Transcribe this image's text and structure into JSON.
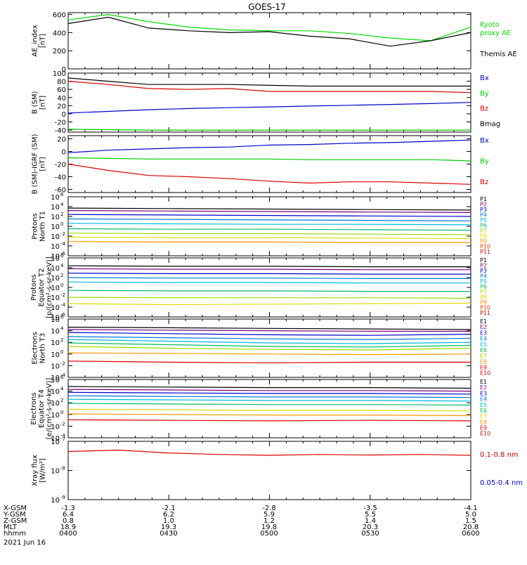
{
  "title": "GOES-17",
  "date_label": "2021 Jun 16",
  "footer": {
    "row_labels": [
      "X-GSM",
      "Y-GSM",
      "Z-GSM",
      "MLT",
      "hhmm"
    ],
    "columns": [
      {
        "values": [
          "-1.3",
          "6.4",
          "0.8",
          "18.9",
          "0400"
        ]
      },
      {
        "values": [
          "-2.1",
          "6.2",
          "1.0",
          "19.3",
          "0430"
        ]
      },
      {
        "values": [
          "-2.8",
          "5.9",
          "1.2",
          "19.8",
          "0500"
        ]
      },
      {
        "values": [
          "-3.5",
          "5.5",
          "1.4",
          "20.3",
          "0530"
        ]
      },
      {
        "values": [
          "-4.1",
          "5.0",
          "1.5",
          "20.8",
          "0600"
        ]
      }
    ]
  },
  "chart_data": [
    {
      "type": "line",
      "ylabel": [
        "AE_index",
        "[nT]"
      ],
      "scale": "linear",
      "ylim": [
        0,
        620
      ],
      "yticks": [
        0,
        200,
        400,
        600
      ],
      "ytick_labels": [
        "0",
        "200",
        "400",
        "600"
      ],
      "x_hours": [
        4.0,
        4.2,
        4.4,
        4.6,
        4.8,
        5.0,
        5.2,
        5.4,
        5.6,
        5.8,
        6.0
      ],
      "series": [
        {
          "name": "Kyoto",
          "name2": "proxy AE",
          "color": "#00dd00",
          "values": [
            540,
            600,
            520,
            460,
            430,
            420,
            420,
            390,
            340,
            310,
            460
          ]
        },
        {
          "name": "Themis AE",
          "color": "#000000",
          "values": [
            500,
            570,
            450,
            420,
            400,
            410,
            360,
            330,
            250,
            310,
            400
          ]
        }
      ]
    },
    {
      "type": "line",
      "ylabel": [
        "B (SM)",
        "[nT]"
      ],
      "scale": "linear",
      "ylim": [
        -45,
        100
      ],
      "yticks": [
        -40,
        -20,
        0,
        20,
        40,
        60,
        80,
        100
      ],
      "ytick_labels": [
        "-40",
        "-20",
        "0",
        "20",
        "40",
        "60",
        "80",
        "100"
      ],
      "x_hours": [
        4.0,
        4.2,
        4.4,
        4.6,
        4.8,
        5.0,
        5.2,
        5.4,
        5.6,
        5.8,
        6.0
      ],
      "series": [
        {
          "name": "Bx",
          "color": "#0000cc",
          "values": [
            2,
            6,
            10,
            13,
            15,
            17,
            19,
            21,
            23,
            25,
            28
          ]
        },
        {
          "name": "By",
          "color": "#00cc00",
          "values": [
            -38,
            -39,
            -40,
            -40,
            -40,
            -40,
            -40,
            -40,
            -40,
            -40,
            -40
          ]
        },
        {
          "name": "Bz",
          "color": "#dd0000",
          "values": [
            80,
            72,
            62,
            60,
            62,
            55,
            55,
            55,
            55,
            55,
            52
          ]
        },
        {
          "name": "Bmag",
          "color": "#000000",
          "values": [
            88,
            80,
            72,
            72,
            72,
            70,
            68,
            68,
            68,
            68,
            68
          ]
        }
      ]
    },
    {
      "type": "line",
      "ylabel": [
        "B (SM)-IGRF (SM)",
        "[nT]"
      ],
      "scale": "linear",
      "ylim": [
        -65,
        25
      ],
      "yticks": [
        -60,
        -40,
        -20,
        0,
        20
      ],
      "ytick_labels": [
        "-60",
        "-40",
        "-20",
        "0",
        "20"
      ],
      "x_hours": [
        4.0,
        4.2,
        4.4,
        4.6,
        4.8,
        5.0,
        5.2,
        5.4,
        5.6,
        5.8,
        6.0
      ],
      "series": [
        {
          "name": "Bx",
          "color": "#0000cc",
          "values": [
            -2,
            2,
            4,
            6,
            7,
            10,
            11,
            13,
            14,
            16,
            18
          ]
        },
        {
          "name": "By",
          "color": "#00cc00",
          "values": [
            -10,
            -11,
            -12,
            -12,
            -12,
            -12,
            -13,
            -13,
            -13,
            -13,
            -15
          ]
        },
        {
          "name": "Bz",
          "color": "#dd0000",
          "values": [
            -20,
            -30,
            -38,
            -40,
            -43,
            -47,
            -50,
            -48,
            -48,
            -50,
            -52
          ]
        }
      ]
    },
    {
      "type": "line",
      "ylabel": [
        "Protons",
        "North T1"
      ],
      "scale": "log",
      "ylim_exp": [
        -6,
        6
      ],
      "ytick_exps": [
        -6,
        -4,
        -2,
        0,
        2,
        4,
        6
      ],
      "ytick_base": "10",
      "ytick_exponents": [
        "-6",
        "-4",
        "-2",
        "0",
        "2",
        "4",
        "6"
      ],
      "x_hours": [
        4.0,
        4.5,
        5.0,
        5.5,
        6.0
      ],
      "series": [
        {
          "name": "P1",
          "color": "#000000",
          "log_values": [
            3.7,
            3.6,
            3.5,
            3.4,
            3.3
          ]
        },
        {
          "name": "P2",
          "color": "#7a007a",
          "log_values": [
            3.2,
            3.1,
            3.0,
            2.9,
            2.8
          ]
        },
        {
          "name": "P3",
          "color": "#0000cc",
          "log_values": [
            2.4,
            2.3,
            2.2,
            2.1,
            2.0
          ]
        },
        {
          "name": "P4",
          "color": "#0077dd",
          "log_values": [
            1.5,
            1.4,
            1.3,
            1.2,
            1.1
          ]
        },
        {
          "name": "P5",
          "color": "#00bbdd",
          "log_values": [
            0.6,
            0.5,
            0.4,
            0.4,
            0.3
          ]
        },
        {
          "name": "P6",
          "color": "#00bb66",
          "log_values": [
            -0.5,
            -0.6,
            -0.6,
            -0.7,
            -0.8
          ]
        },
        {
          "name": "P7",
          "color": "#99dd00",
          "log_values": [
            -1.4,
            -1.5,
            -1.5,
            -1.6,
            -1.7
          ]
        },
        {
          "name": "P8",
          "color": "#dddd00",
          "log_values": [
            -2.2,
            -2.3,
            -2.3,
            -2.4,
            -2.5
          ]
        },
        {
          "name": "P9",
          "color": "#ff9900",
          "log_values": [
            -3.1,
            -3.2,
            -3.2,
            -3.3,
            -3.3
          ]
        },
        {
          "name": "P10",
          "color": "#ff3300",
          "log_values": []
        },
        {
          "name": "P11",
          "color": "#cc0000",
          "log_values": []
        }
      ]
    },
    {
      "type": "line",
      "ylabel": [
        "Protons",
        "Equator T2",
        "[p/(cm²-s-sr-keV)]"
      ],
      "scale": "log",
      "ylim_exp": [
        -6,
        6
      ],
      "ytick_exps": [
        -6,
        -4,
        -2,
        0,
        2,
        4,
        6
      ],
      "ytick_base": "10",
      "ytick_exponents": [
        "-6",
        "-4",
        "-2",
        "0",
        "2",
        "4",
        "6"
      ],
      "x_hours": [
        4.0,
        4.5,
        5.0,
        5.5,
        6.0
      ],
      "series": [
        {
          "name": "P1",
          "color": "#000000",
          "log_values": [
            4.4,
            4.3,
            4.3,
            4.2,
            4.2
          ]
        },
        {
          "name": "P2",
          "color": "#7a007a",
          "log_values": [
            3.8,
            3.7,
            3.7,
            3.6,
            3.6
          ]
        },
        {
          "name": "P3",
          "color": "#0000cc",
          "log_values": [
            2.9,
            2.8,
            2.8,
            2.7,
            2.7
          ]
        },
        {
          "name": "P4",
          "color": "#0077dd",
          "log_values": [
            2.0,
            1.9,
            1.9,
            1.8,
            1.8
          ]
        },
        {
          "name": "P5",
          "color": "#00bbdd",
          "log_values": [
            1.1,
            1.0,
            1.0,
            0.9,
            0.9
          ]
        },
        {
          "name": "P6",
          "color": "#00bb66",
          "log_values": [
            -0.6,
            -0.7,
            -0.7,
            -0.8,
            -0.8
          ]
        },
        {
          "name": "P7",
          "color": "#99dd00",
          "log_values": [
            -2.0,
            -2.1,
            -2.1,
            -2.1,
            -2.2
          ]
        },
        {
          "name": "P8",
          "color": "#dddd00",
          "log_values": [
            -3.3,
            -3.5,
            -3.4,
            -3.3,
            -3.2
          ]
        },
        {
          "name": "P9",
          "color": "#ff9900",
          "log_values": []
        },
        {
          "name": "P10",
          "color": "#ff3300",
          "log_values": []
        },
        {
          "name": "P11",
          "color": "#cc0000",
          "log_values": []
        }
      ]
    },
    {
      "type": "line",
      "ylabel": [
        "Electrons",
        "North T3"
      ],
      "scale": "log",
      "ylim_exp": [
        -4,
        6
      ],
      "ytick_exps": [
        -4,
        -2,
        0,
        2,
        4,
        6
      ],
      "ytick_base": "10",
      "ytick_exponents": [
        "-4",
        "-2",
        "0",
        "2",
        "4",
        "6"
      ],
      "x_hours": [
        4.0,
        4.5,
        5.0,
        5.5,
        6.0
      ],
      "series": [
        {
          "name": "E1",
          "color": "#000000",
          "log_values": [
            4.6,
            4.5,
            4.4,
            4.3,
            4.2
          ]
        },
        {
          "name": "E2",
          "color": "#7a007a",
          "log_values": [
            4.2,
            4.1,
            4.0,
            3.9,
            3.9
          ]
        },
        {
          "name": "E3",
          "color": "#0000cc",
          "log_values": [
            3.7,
            3.5,
            3.3,
            3.2,
            3.4
          ]
        },
        {
          "name": "E4",
          "color": "#0077dd",
          "log_values": [
            3.0,
            2.8,
            2.6,
            2.5,
            2.7
          ]
        },
        {
          "name": "E5",
          "color": "#00bbdd",
          "log_values": [
            2.5,
            2.2,
            1.9,
            1.8,
            2.0
          ]
        },
        {
          "name": "E6",
          "color": "#00bb66",
          "log_values": [
            1.9,
            1.6,
            1.3,
            1.2,
            1.5
          ]
        },
        {
          "name": "E7",
          "color": "#99dd00",
          "log_values": [
            1.3,
            1.0,
            0.8,
            0.7,
            1.0
          ]
        },
        {
          "name": "E8",
          "color": "#ff9900",
          "log_values": [
            0.2,
            0.1,
            0.0,
            -0.1,
            0.0
          ]
        },
        {
          "name": "E9",
          "color": "#dd0000",
          "log_values": [
            -1.2,
            -1.4,
            -1.5,
            -1.4,
            -1.4
          ]
        },
        {
          "name": "E10",
          "color": "#cc0000",
          "log_values": []
        }
      ]
    },
    {
      "type": "line",
      "ylabel": [
        "Electrons",
        "Equator T4",
        "[e/(cm²-s-sr-keV)]"
      ],
      "scale": "log",
      "ylim_exp": [
        -4,
        6
      ],
      "ytick_exps": [
        -4,
        -2,
        0,
        2,
        4,
        6
      ],
      "ytick_base": "10",
      "ytick_exponents": [
        "-4",
        "-2",
        "0",
        "2",
        "4",
        "6"
      ],
      "x_hours": [
        4.0,
        4.5,
        5.0,
        5.5,
        6.0
      ],
      "series": [
        {
          "name": "E1",
          "color": "#000000",
          "log_values": [
            4.8,
            4.7,
            4.6,
            4.6,
            4.5
          ]
        },
        {
          "name": "E2",
          "color": "#7a007a",
          "log_values": [
            4.3,
            4.2,
            4.1,
            4.1,
            4.0
          ]
        },
        {
          "name": "E3",
          "color": "#0000cc",
          "log_values": [
            3.8,
            3.7,
            3.6,
            3.6,
            3.5
          ]
        },
        {
          "name": "E4",
          "color": "#0077dd",
          "log_values": [
            3.2,
            3.1,
            3.0,
            3.0,
            2.9
          ]
        },
        {
          "name": "E5",
          "color": "#00bbdd",
          "log_values": [
            2.6,
            2.5,
            2.4,
            2.4,
            2.3
          ]
        },
        {
          "name": "E6",
          "color": "#00bb66",
          "log_values": [
            1.9,
            1.8,
            1.7,
            1.7,
            1.6
          ]
        },
        {
          "name": "E7",
          "color": "#dddd00",
          "log_values": [
            0.9,
            0.8,
            0.7,
            0.7,
            0.6
          ]
        },
        {
          "name": "E8",
          "color": "#ff9900",
          "log_values": [
            0.1,
            0.0,
            -0.1,
            -0.1,
            -0.2
          ]
        },
        {
          "name": "E9",
          "color": "#dd0000",
          "log_values": [
            -0.9,
            -1.0,
            -1.1,
            -1.0,
            -1.1
          ]
        },
        {
          "name": "E10",
          "color": "#cc0000",
          "log_values": []
        }
      ]
    },
    {
      "type": "line",
      "ylabel": [
        "Xray flux",
        "[W/m²]"
      ],
      "scale": "log",
      "ylim_exp": [
        -9,
        -7
      ],
      "ytick_exps": [
        -9,
        -8,
        -7
      ],
      "ytick_base": "10",
      "ytick_exponents": [
        "-9",
        "-8",
        "-7"
      ],
      "x_hours": [
        4.0,
        4.25,
        4.5,
        4.75,
        5.0,
        5.25,
        5.5,
        5.75,
        6.0
      ],
      "series": [
        {
          "name": "0.1-0.8 nm",
          "color": "#dd0000",
          "log_values": [
            -7.35,
            -7.3,
            -7.4,
            -7.45,
            -7.48,
            -7.45,
            -7.47,
            -7.45,
            -7.48
          ]
        },
        {
          "name": "0.05-0.4 nm",
          "color": "#0000cc",
          "log_values": []
        }
      ]
    }
  ]
}
